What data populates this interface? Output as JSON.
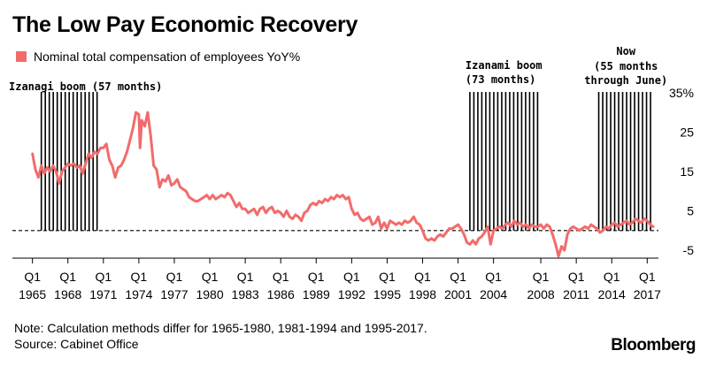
{
  "title": "The Low Pay Economic Recovery",
  "note": "Note: Calculation methods differ for 1965-1980, 1981-1994 and 1995-2017.",
  "source": "Source: Cabinet Office",
  "brand": "Bloomberg",
  "colors": {
    "series": "#f26b6b",
    "bands": "#000000",
    "zero_line": "#000000"
  },
  "chart_data": {
    "type": "line",
    "xlabel": "",
    "ylabel": "",
    "x_ticks": [
      {
        "q": "Q1",
        "year": "1965",
        "x": 1965.0
      },
      {
        "q": "Q1",
        "year": "1968",
        "x": 1968.0
      },
      {
        "q": "Q1",
        "year": "1971",
        "x": 1971.0
      },
      {
        "q": "Q1",
        "year": "1974",
        "x": 1974.0
      },
      {
        "q": "Q1",
        "year": "1977",
        "x": 1977.0
      },
      {
        "q": "Q1",
        "year": "1980",
        "x": 1980.0
      },
      {
        "q": "Q1",
        "year": "1983",
        "x": 1983.0
      },
      {
        "q": "Q1",
        "year": "1986",
        "x": 1986.0
      },
      {
        "q": "Q1",
        "year": "1989",
        "x": 1989.0
      },
      {
        "q": "Q1",
        "year": "1992",
        "x": 1992.0
      },
      {
        "q": "Q1",
        "year": "1995",
        "x": 1995.0
      },
      {
        "q": "Q1",
        "year": "1998",
        "x": 1998.0
      },
      {
        "q": "Q1",
        "year": "2001",
        "x": 2001.0
      },
      {
        "q": "Q1",
        "year": "2004",
        "x": 2004.0
      },
      {
        "q": "Q1",
        "year": "2008",
        "x": 2008.0
      },
      {
        "q": "Q1",
        "year": "2011",
        "x": 2011.0
      },
      {
        "q": "Q1",
        "year": "2014",
        "x": 2014.0
      },
      {
        "q": "Q1",
        "year": "2017",
        "x": 2017.0
      }
    ],
    "y_ticks": [
      {
        "value": 35,
        "label": "35%"
      },
      {
        "value": 25,
        "label": "25"
      },
      {
        "value": 15,
        "label": "15"
      },
      {
        "value": 5,
        "label": "5"
      },
      {
        "value": -5,
        "label": "-5"
      }
    ],
    "xlim": [
      1964.8,
      2017.8
    ],
    "ylim": [
      -7,
      37
    ],
    "zero_line": {
      "y": 0,
      "style": "dashed"
    },
    "legend": {
      "position": "top-left",
      "label": "Nominal total compensation of employees YoY%"
    },
    "annotations": [
      {
        "label": "Izanagi boom (57 months)",
        "x_start": 1965.75,
        "x_end": 1970.5
      },
      {
        "label": "Izanami boom",
        "label2": "(73 months)",
        "x_start": 2002.0,
        "x_end": 2008.0
      },
      {
        "label": "Now",
        "label2": "(55 months",
        "label3": "through June)",
        "x_start": 2012.9,
        "x_end": 2017.5
      }
    ],
    "series": [
      {
        "name": "Nominal total compensation of employees YoY%",
        "points": [
          [
            1965.0,
            19.5
          ],
          [
            1965.25,
            15.5
          ],
          [
            1965.5,
            13.5
          ],
          [
            1965.75,
            16.5
          ],
          [
            1966.0,
            14.5
          ],
          [
            1966.25,
            16.0
          ],
          [
            1966.5,
            15.0
          ],
          [
            1966.75,
            16.5
          ],
          [
            1967.0,
            15.0
          ],
          [
            1967.25,
            12.0
          ],
          [
            1967.5,
            15.0
          ],
          [
            1967.75,
            16.0
          ],
          [
            1968.0,
            17.0
          ],
          [
            1968.25,
            16.5
          ],
          [
            1968.5,
            17.0
          ],
          [
            1968.75,
            16.0
          ],
          [
            1969.0,
            16.5
          ],
          [
            1969.25,
            14.5
          ],
          [
            1969.5,
            17.0
          ],
          [
            1969.75,
            19.5
          ],
          [
            1970.0,
            18.5
          ],
          [
            1970.25,
            20.0
          ],
          [
            1970.5,
            19.5
          ],
          [
            1970.75,
            21.0
          ],
          [
            1971.0,
            21.0
          ],
          [
            1971.25,
            22.0
          ],
          [
            1971.5,
            18.0
          ],
          [
            1971.75,
            16.5
          ],
          [
            1972.0,
            13.5
          ],
          [
            1972.25,
            16.0
          ],
          [
            1972.5,
            16.5
          ],
          [
            1972.75,
            18.0
          ],
          [
            1973.0,
            20.0
          ],
          [
            1973.25,
            23.0
          ],
          [
            1973.5,
            26.0
          ],
          [
            1973.75,
            30.0
          ],
          [
            1974.0,
            29.5
          ],
          [
            1974.1,
            21.0
          ],
          [
            1974.25,
            28.0
          ],
          [
            1974.5,
            26.5
          ],
          [
            1974.75,
            30.0
          ],
          [
            1975.0,
            24.0
          ],
          [
            1975.25,
            16.5
          ],
          [
            1975.5,
            15.5
          ],
          [
            1975.75,
            11.0
          ],
          [
            1976.0,
            13.0
          ],
          [
            1976.25,
            12.5
          ],
          [
            1976.5,
            14.0
          ],
          [
            1976.75,
            11.5
          ],
          [
            1977.0,
            12.0
          ],
          [
            1977.25,
            13.0
          ],
          [
            1977.5,
            11.0
          ],
          [
            1977.75,
            10.5
          ],
          [
            1978.0,
            10.0
          ],
          [
            1978.25,
            8.5
          ],
          [
            1978.5,
            8.0
          ],
          [
            1978.75,
            7.5
          ],
          [
            1979.0,
            7.5
          ],
          [
            1979.25,
            8.0
          ],
          [
            1979.5,
            8.5
          ],
          [
            1979.75,
            9.0
          ],
          [
            1980.0,
            8.0
          ],
          [
            1980.25,
            9.0
          ],
          [
            1980.5,
            8.0
          ],
          [
            1980.75,
            8.5
          ],
          [
            1981.0,
            9.0
          ],
          [
            1981.25,
            8.5
          ],
          [
            1981.5,
            9.5
          ],
          [
            1981.75,
            9.0
          ],
          [
            1982.0,
            7.5
          ],
          [
            1982.25,
            6.0
          ],
          [
            1982.5,
            7.0
          ],
          [
            1982.75,
            5.5
          ],
          [
            1983.0,
            5.5
          ],
          [
            1983.25,
            4.5
          ],
          [
            1983.5,
            5.0
          ],
          [
            1983.75,
            5.5
          ],
          [
            1984.0,
            4.0
          ],
          [
            1984.25,
            5.5
          ],
          [
            1984.5,
            6.0
          ],
          [
            1984.75,
            4.5
          ],
          [
            1985.0,
            5.5
          ],
          [
            1985.25,
            6.0
          ],
          [
            1985.5,
            4.5
          ],
          [
            1985.75,
            5.0
          ],
          [
            1986.0,
            4.5
          ],
          [
            1986.25,
            3.5
          ],
          [
            1986.5,
            5.0
          ],
          [
            1986.75,
            3.5
          ],
          [
            1987.0,
            3.0
          ],
          [
            1987.25,
            4.0
          ],
          [
            1987.5,
            3.5
          ],
          [
            1987.75,
            2.5
          ],
          [
            1988.0,
            4.5
          ],
          [
            1988.25,
            5.0
          ],
          [
            1988.5,
            6.5
          ],
          [
            1988.75,
            7.0
          ],
          [
            1989.0,
            6.5
          ],
          [
            1989.25,
            7.5
          ],
          [
            1989.5,
            7.0
          ],
          [
            1989.75,
            8.0
          ],
          [
            1990.0,
            7.5
          ],
          [
            1990.25,
            8.5
          ],
          [
            1990.5,
            8.0
          ],
          [
            1990.75,
            9.0
          ],
          [
            1991.0,
            8.5
          ],
          [
            1991.25,
            9.0
          ],
          [
            1991.5,
            8.0
          ],
          [
            1991.75,
            8.5
          ],
          [
            1992.0,
            5.5
          ],
          [
            1992.25,
            4.0
          ],
          [
            1992.5,
            4.5
          ],
          [
            1992.75,
            3.0
          ],
          [
            1993.0,
            2.5
          ],
          [
            1993.25,
            3.0
          ],
          [
            1993.5,
            3.5
          ],
          [
            1993.75,
            1.5
          ],
          [
            1994.0,
            2.0
          ],
          [
            1994.25,
            3.5
          ],
          [
            1994.5,
            0.5
          ],
          [
            1994.75,
            2.0
          ],
          [
            1995.0,
            0.5
          ],
          [
            1995.25,
            2.5
          ],
          [
            1995.5,
            2.0
          ],
          [
            1995.75,
            1.5
          ],
          [
            1996.0,
            2.0
          ],
          [
            1996.25,
            1.5
          ],
          [
            1996.5,
            2.5
          ],
          [
            1996.75,
            2.0
          ],
          [
            1997.0,
            2.5
          ],
          [
            1997.25,
            3.5
          ],
          [
            1997.5,
            2.0
          ],
          [
            1997.75,
            1.5
          ],
          [
            1998.0,
            0.0
          ],
          [
            1998.25,
            -2.0
          ],
          [
            1998.5,
            -2.5
          ],
          [
            1998.75,
            -2.0
          ],
          [
            1999.0,
            -2.5
          ],
          [
            1999.25,
            -1.5
          ],
          [
            1999.5,
            -1.0
          ],
          [
            1999.75,
            -1.5
          ],
          [
            2000.0,
            -0.5
          ],
          [
            2000.25,
            0.5
          ],
          [
            2000.5,
            0.5
          ],
          [
            2000.75,
            1.0
          ],
          [
            2001.0,
            1.5
          ],
          [
            2001.25,
            0.5
          ],
          [
            2001.5,
            -1.0
          ],
          [
            2001.75,
            -3.0
          ],
          [
            2002.0,
            -3.5
          ],
          [
            2002.25,
            -2.5
          ],
          [
            2002.5,
            -3.5
          ],
          [
            2002.75,
            -2.0
          ],
          [
            2003.0,
            -1.5
          ],
          [
            2003.25,
            -0.5
          ],
          [
            2003.5,
            1.0
          ],
          [
            2003.75,
            -3.5
          ],
          [
            2004.0,
            0.0
          ],
          [
            2004.25,
            0.5
          ],
          [
            2004.5,
            1.0
          ],
          [
            2004.75,
            0.5
          ],
          [
            2005.0,
            1.5
          ],
          [
            2005.25,
            2.0
          ],
          [
            2005.5,
            1.0
          ],
          [
            2005.75,
            2.5
          ],
          [
            2006.0,
            1.5
          ],
          [
            2006.25,
            2.0
          ],
          [
            2006.5,
            1.0
          ],
          [
            2006.75,
            1.5
          ],
          [
            2007.0,
            0.5
          ],
          [
            2007.25,
            1.5
          ],
          [
            2007.5,
            1.0
          ],
          [
            2007.75,
            1.0
          ],
          [
            2008.0,
            1.5
          ],
          [
            2008.25,
            0.5
          ],
          [
            2008.5,
            1.5
          ],
          [
            2008.75,
            1.0
          ],
          [
            2009.0,
            -1.0
          ],
          [
            2009.25,
            -3.5
          ],
          [
            2009.5,
            -6.5
          ],
          [
            2009.75,
            -4.0
          ],
          [
            2010.0,
            -5.0
          ],
          [
            2010.25,
            -1.0
          ],
          [
            2010.5,
            0.5
          ],
          [
            2010.75,
            1.0
          ],
          [
            2011.0,
            0.5
          ],
          [
            2011.25,
            0.0
          ],
          [
            2011.5,
            0.5
          ],
          [
            2011.75,
            1.0
          ],
          [
            2012.0,
            0.5
          ],
          [
            2012.25,
            1.5
          ],
          [
            2012.5,
            1.0
          ],
          [
            2012.75,
            0.5
          ],
          [
            2013.0,
            -0.5
          ],
          [
            2013.25,
            0.0
          ],
          [
            2013.5,
            1.0
          ],
          [
            2013.75,
            0.5
          ],
          [
            2014.0,
            1.5
          ],
          [
            2014.25,
            2.0
          ],
          [
            2014.5,
            1.0
          ],
          [
            2014.75,
            1.5
          ],
          [
            2015.0,
            2.0
          ],
          [
            2015.25,
            2.5
          ],
          [
            2015.5,
            1.5
          ],
          [
            2015.75,
            2.0
          ],
          [
            2016.0,
            3.0
          ],
          [
            2016.25,
            2.5
          ],
          [
            2016.5,
            2.0
          ],
          [
            2016.75,
            3.0
          ],
          [
            2017.0,
            2.5
          ],
          [
            2017.25,
            1.5
          ],
          [
            2017.5,
            1.0
          ]
        ]
      }
    ]
  }
}
